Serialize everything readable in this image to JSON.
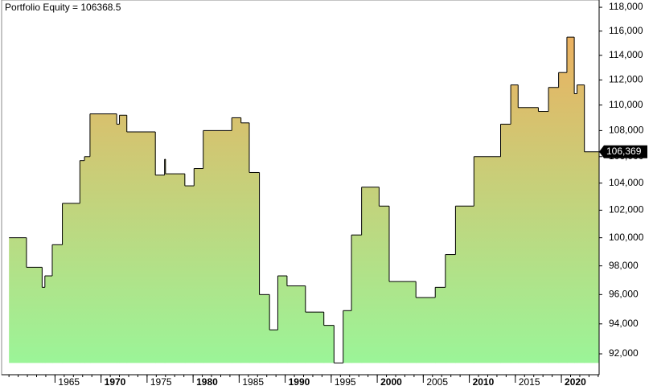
{
  "chart_data": {
    "type": "step-area",
    "title": "Portfolio Equity = 106368.5",
    "x": [
      1960.0,
      1961.9,
      1963.6,
      1963.9,
      1964.7,
      1965.8,
      1967.7,
      1968.2,
      1968.8,
      1971.7,
      1972.0,
      1972.8,
      1975.9,
      1976.9,
      1977.0,
      1979.1,
      1980.1,
      1981.1,
      1984.2,
      1985.2,
      1986.1,
      1987.2,
      1988.3,
      1989.2,
      1990.2,
      1992.2,
      1994.2,
      1995.3,
      1996.3,
      1997.2,
      1998.3,
      2000.2,
      2001.3,
      2004.2,
      2006.3,
      2007.4,
      2008.5,
      2010.5,
      2013.4,
      2014.5,
      2015.3,
      2017.5,
      2018.6,
      2019.7,
      2020.6,
      2021.4,
      2021.7,
      2022.5
    ],
    "values": [
      100000,
      97900,
      96500,
      97300,
      99500,
      102500,
      105700,
      106000,
      109300,
      108500,
      109200,
      107900,
      104600,
      105800,
      104700,
      103800,
      105100,
      108000,
      109000,
      108600,
      104800,
      96000,
      93600,
      97300,
      96600,
      94800,
      93900,
      91400,
      94900,
      100200,
      103700,
      102300,
      96900,
      95800,
      96500,
      98800,
      102300,
      106000,
      108500,
      111600,
      109800,
      109500,
      111400,
      112600,
      115500,
      110900,
      111600,
      106368.5
    ],
    "value_labels": [
      null,
      null,
      null,
      null,
      null,
      null,
      null,
      null,
      null,
      null,
      null,
      null,
      null,
      null,
      null,
      null,
      null,
      null,
      null,
      null,
      null,
      null,
      null,
      null,
      null,
      null,
      null,
      null,
      null,
      null,
      null,
      null,
      null,
      null,
      null,
      null,
      null,
      null,
      null,
      null,
      null,
      null,
      null,
      null,
      null,
      null,
      null,
      "106,369"
    ],
    "colors": {
      "top": "#f4a95a",
      "bottom": "#98f79a",
      "line": "#000000"
    },
    "log_scale": true,
    "xlim": [
      1959.2,
      2024.1
    ],
    "ylim": [
      90630,
      118620
    ],
    "xticks": [
      1965,
      1970,
      1975,
      1980,
      1985,
      1990,
      1995,
      2000,
      2005,
      2010,
      2015,
      2020
    ],
    "yticks": [
      {
        "value": 92000,
        "label": "92,000"
      },
      {
        "value": 94000,
        "label": "94,000"
      },
      {
        "value": 96000,
        "label": "96,000"
      },
      {
        "value": 98000,
        "label": "98,000"
      },
      {
        "value": 100000,
        "label": "100,000"
      },
      {
        "value": 102000,
        "label": "102,000"
      },
      {
        "value": 104000,
        "label": "104,000"
      },
      {
        "value": 106000,
        "label": "106,000"
      },
      {
        "value": 108000,
        "label": "108,000"
      },
      {
        "value": 110000,
        "label": "110,000"
      },
      {
        "value": 112000,
        "label": "112,000"
      },
      {
        "value": 114000,
        "label": "114,000"
      },
      {
        "value": 116000,
        "label": "116,000"
      },
      {
        "value": 118000,
        "label": "118,000"
      }
    ]
  }
}
